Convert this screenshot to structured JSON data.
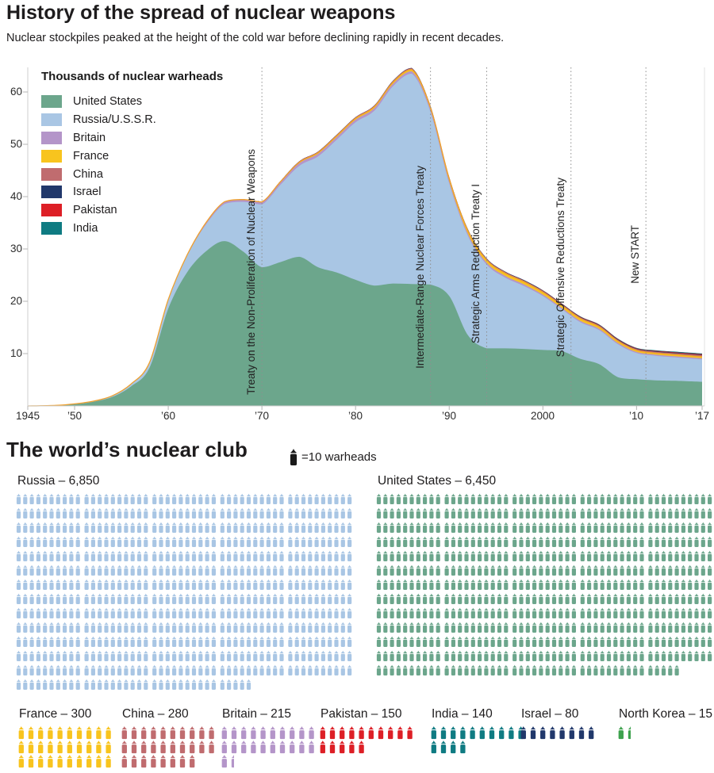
{
  "header": {
    "title": "History of the spread of nuclear weapons",
    "subtitle": "Nuclear stockpiles peaked at the height of the cold war before declining rapidly in recent decades."
  },
  "chart_data": [
    {
      "type": "area",
      "stacked": true,
      "title": "Thousands of nuclear warheads",
      "ylabel": "Thousands of nuclear warheads",
      "xlim": [
        1945,
        2017
      ],
      "ylim": [
        0,
        65
      ],
      "yticks": [
        10,
        20,
        30,
        40,
        50,
        60
      ],
      "xticks": [
        {
          "label": "1945",
          "year": 1945
        },
        {
          "label": "’50",
          "year": 1950
        },
        {
          "label": "’60",
          "year": 1960
        },
        {
          "label": "’70",
          "year": 1970
        },
        {
          "label": "’80",
          "year": 1980
        },
        {
          "label": "’90",
          "year": 1990
        },
        {
          "label": "2000",
          "year": 2000
        },
        {
          "label": "’10",
          "year": 2010
        },
        {
          "label": "’17",
          "year": 2017
        }
      ],
      "x": [
        1945,
        1948,
        1950,
        1952,
        1954,
        1956,
        1958,
        1960,
        1962,
        1964,
        1966,
        1968,
        1970,
        1972,
        1974,
        1976,
        1978,
        1980,
        1982,
        1984,
        1986,
        1988,
        1990,
        1992,
        1994,
        1996,
        1998,
        2000,
        2002,
        2004,
        2006,
        2008,
        2010,
        2012,
        2014,
        2017
      ],
      "series": [
        {
          "name": "United States",
          "color": "#6CA68C",
          "values": [
            0,
            0.1,
            0.3,
            0.8,
            1.7,
            3.7,
            7.3,
            18.6,
            25.5,
            29.5,
            31.5,
            29.5,
            26.5,
            27.5,
            28.5,
            26.5,
            25.5,
            24.1,
            23.0,
            23.4,
            23.3,
            23.2,
            21.0,
            13.5,
            11.0,
            11.0,
            10.9,
            10.7,
            10.5,
            9.0,
            8.0,
            5.5,
            5.1,
            4.9,
            4.8,
            4.6
          ]
        },
        {
          "name": "Russia/U.S.S.R.",
          "color": "#A9C6E4",
          "values": [
            0,
            0,
            0.1,
            0.1,
            0.2,
            0.4,
            0.9,
            1.6,
            3.1,
            5.1,
            7.1,
            9.5,
            12.0,
            14.8,
            17.4,
            21.2,
            25.4,
            30.1,
            33.4,
            37.7,
            40.2,
            33.0,
            21.5,
            19.0,
            16.0,
            13.5,
            12.0,
            10.3,
            8.0,
            7.0,
            6.5,
            6.3,
            5.0,
            4.7,
            4.5,
            4.3
          ]
        },
        {
          "name": "Britain",
          "color": "#B495C9",
          "values": [
            0,
            0,
            0,
            0.01,
            0.02,
            0.05,
            0.1,
            0.15,
            0.2,
            0.31,
            0.36,
            0.38,
            0.39,
            0.44,
            0.5,
            0.5,
            0.5,
            0.5,
            0.5,
            0.48,
            0.46,
            0.44,
            0.42,
            0.4,
            0.37,
            0.34,
            0.32,
            0.28,
            0.28,
            0.28,
            0.25,
            0.25,
            0.22,
            0.22,
            0.22,
            0.215
          ]
        },
        {
          "name": "France",
          "color": "#F8C41E",
          "values": [
            0,
            0,
            0,
            0,
            0,
            0,
            0,
            0,
            0,
            0.04,
            0.05,
            0.06,
            0.1,
            0.14,
            0.18,
            0.21,
            0.23,
            0.25,
            0.27,
            0.3,
            0.35,
            0.41,
            0.5,
            0.54,
            0.51,
            0.5,
            0.49,
            0.47,
            0.45,
            0.43,
            0.4,
            0.35,
            0.3,
            0.3,
            0.3,
            0.3
          ]
        },
        {
          "name": "China",
          "color": "#C06C6F",
          "values": [
            0,
            0,
            0,
            0,
            0,
            0,
            0,
            0,
            0,
            0.01,
            0.02,
            0.04,
            0.08,
            0.12,
            0.16,
            0.18,
            0.19,
            0.2,
            0.21,
            0.22,
            0.22,
            0.23,
            0.23,
            0.23,
            0.23,
            0.23,
            0.23,
            0.23,
            0.23,
            0.23,
            0.24,
            0.24,
            0.24,
            0.25,
            0.26,
            0.27
          ]
        },
        {
          "name": "Israel",
          "color": "#21386B",
          "values": [
            0,
            0,
            0,
            0,
            0,
            0,
            0,
            0,
            0,
            0,
            0,
            0.005,
            0.01,
            0.015,
            0.02,
            0.025,
            0.03,
            0.03,
            0.04,
            0.05,
            0.05,
            0.06,
            0.06,
            0.06,
            0.065,
            0.065,
            0.07,
            0.07,
            0.07,
            0.075,
            0.075,
            0.08,
            0.08,
            0.08,
            0.08,
            0.08
          ]
        },
        {
          "name": "Pakistan",
          "color": "#DD1F26",
          "values": [
            0,
            0,
            0,
            0,
            0,
            0,
            0,
            0,
            0,
            0,
            0,
            0,
            0,
            0,
            0,
            0,
            0,
            0,
            0,
            0,
            0,
            0,
            0,
            0,
            0,
            0.005,
            0.01,
            0.03,
            0.04,
            0.05,
            0.06,
            0.08,
            0.09,
            0.1,
            0.12,
            0.14
          ]
        },
        {
          "name": "India",
          "color": "#0F7B82",
          "values": [
            0,
            0,
            0,
            0,
            0,
            0,
            0,
            0,
            0,
            0,
            0,
            0,
            0,
            0,
            0,
            0,
            0.002,
            0.003,
            0.004,
            0.005,
            0.006,
            0.007,
            0.008,
            0.01,
            0.012,
            0.015,
            0.02,
            0.03,
            0.04,
            0.05,
            0.06,
            0.07,
            0.08,
            0.1,
            0.11,
            0.13
          ]
        }
      ],
      "annotations": [
        {
          "label": "Treaty on the Non-Proliferation of Nuclear Weapons",
          "year": 1970
        },
        {
          "label": "Intermediate-Range Nuclear Forces Treaty",
          "year": 1988
        },
        {
          "label": "Strategic Arms Reduction Treaty I",
          "year": 1994
        },
        {
          "label": "Strategic Offensive Reductions Treaty",
          "year": 2003
        },
        {
          "label": "New START",
          "year": 2011
        }
      ]
    },
    {
      "type": "pictogram",
      "title": "The world’s nuclear club",
      "unit": 10,
      "key_label": "=10 warheads",
      "groups": [
        {
          "name": "Russia",
          "label": "Russia – 6,850",
          "value": 6850,
          "color": "#A9C6E4",
          "size": "large"
        },
        {
          "name": "United States",
          "label": "United States – 6,450",
          "value": 6450,
          "color": "#6CA68C",
          "size": "large"
        },
        {
          "name": "France",
          "label": "France – 300",
          "value": 300,
          "color": "#F8C41E",
          "size": "small"
        },
        {
          "name": "China",
          "label": "China – 280",
          "value": 280,
          "color": "#C06C6F",
          "size": "small"
        },
        {
          "name": "Britain",
          "label": "Britain – 215",
          "value": 215,
          "color": "#B495C9",
          "size": "small"
        },
        {
          "name": "Pakistan",
          "label": "Pakistan – 150",
          "value": 150,
          "color": "#DD1F26",
          "size": "small"
        },
        {
          "name": "India",
          "label": "India – 140",
          "value": 140,
          "color": "#0F7B82",
          "size": "small"
        },
        {
          "name": "Israel",
          "label": "Israel – 80",
          "value": 80,
          "color": "#21386B",
          "size": "small"
        },
        {
          "name": "North Korea",
          "label": "North Korea – 15",
          "value": 15,
          "color": "#3EA24E",
          "size": "small"
        }
      ]
    }
  ]
}
